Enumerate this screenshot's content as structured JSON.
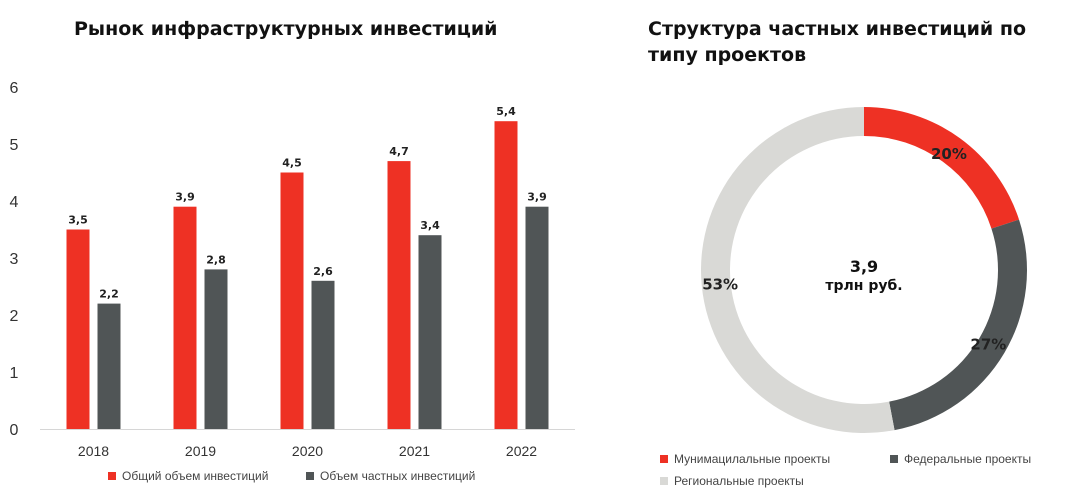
{
  "chart_data": [
    {
      "type": "bar",
      "title": "Рынок инфраструктурных инвестиций",
      "categories": [
        "2018",
        "2019",
        "2020",
        "2021",
        "2022"
      ],
      "series": [
        {
          "name": "Общий объем инвестиций",
          "values": [
            3.5,
            3.9,
            4.5,
            4.7,
            5.4
          ],
          "labels": [
            "3,5",
            "3,9",
            "4,5",
            "4,7",
            "5,4"
          ],
          "color": "#EE3124"
        },
        {
          "name": "Объем частных инвестиций",
          "values": [
            2.2,
            2.8,
            2.6,
            3.4,
            3.9
          ],
          "labels": [
            "2,2",
            "2,8",
            "2,6",
            "3,4",
            "3,9"
          ],
          "color": "#505556"
        }
      ],
      "yticks": [
        "0",
        "1",
        "2",
        "3",
        "4",
        "5",
        "6"
      ],
      "ylim": [
        0,
        6
      ],
      "grid": false,
      "legend_position": "bottom"
    },
    {
      "type": "pie",
      "title": "Структура частных инвестиций по типу проектов",
      "center_value": "3,9",
      "center_unit": "трлн руб.",
      "slices": [
        {
          "name": "Мунимацилальные проекты",
          "value": 20,
          "label": "20%",
          "color": "#EE3124"
        },
        {
          "name": "Федеральные проекты",
          "value": 27,
          "label": "27%",
          "color": "#505556"
        },
        {
          "name": "Региональные проекты",
          "value": 53,
          "label": "53%",
          "color": "#D9D9D6"
        }
      ],
      "legend_position": "bottom"
    }
  ]
}
